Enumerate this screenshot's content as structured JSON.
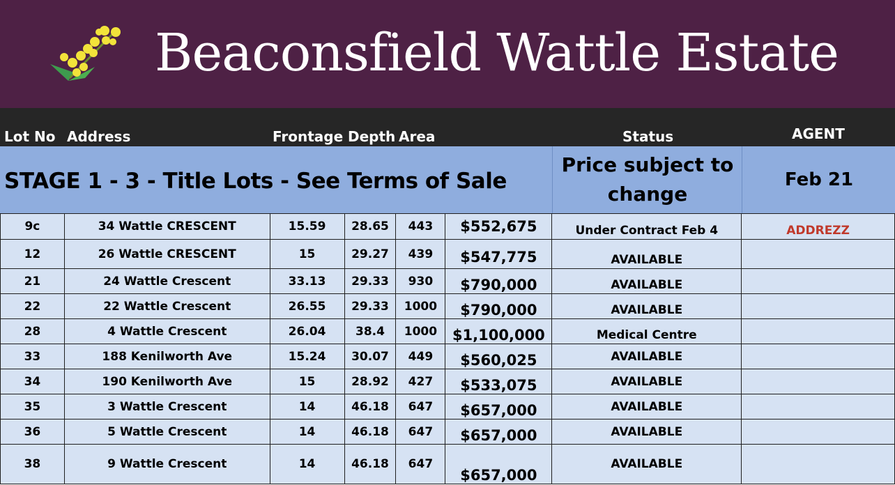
{
  "banner": {
    "title": "Beaconsfield Wattle Estate",
    "background": "#4e2145",
    "logo_icon": "wattle-flower-logo"
  },
  "header": {
    "lot_no": "Lot No",
    "address": "Address",
    "frontage": "Frontage",
    "depth": "Depth",
    "area": "Area",
    "status": "Status",
    "agent": "AGENT"
  },
  "stage": {
    "title": "STAGE  1 - 3  - Title Lots - See Terms of Sale",
    "price_note": "Price subject to change",
    "month": "Feb 21"
  },
  "lots": [
    {
      "lot": "9c",
      "address": "34 Wattle CRESCENT",
      "frontage": "15.59",
      "depth": "28.65",
      "area": "443",
      "price": "$552,675",
      "status": "Under Contract Feb 4",
      "agent": "ADDREZZ"
    },
    {
      "lot": "12",
      "address": "26 Wattle CRESCENT",
      "frontage": "15",
      "depth": "29.27",
      "area": "439",
      "price": "$547,775",
      "status": "AVAILABLE",
      "agent": ""
    },
    {
      "lot": "21",
      "address": "24 Wattle Crescent",
      "frontage": "33.13",
      "depth": "29.33",
      "area": "930",
      "price": "$790,000",
      "status": "AVAILABLE",
      "agent": ""
    },
    {
      "lot": "22",
      "address": "22 Wattle Crescent",
      "frontage": "26.55",
      "depth": "29.33",
      "area": "1000",
      "price": "$790,000",
      "status": "AVAILABLE",
      "agent": ""
    },
    {
      "lot": "28",
      "address": "4 Wattle Crescent",
      "frontage": "26.04",
      "depth": "38.4",
      "area": "1000",
      "price": "$1,100,000",
      "status": "Medical Centre",
      "agent": ""
    },
    {
      "lot": "33",
      "address": "188 Kenilworth Ave",
      "frontage": "15.24",
      "depth": "30.07",
      "area": "449",
      "price": "$560,025",
      "status": "AVAILABLE",
      "agent": ""
    },
    {
      "lot": "34",
      "address": "190 Kenilworth Ave",
      "frontage": "15",
      "depth": "28.92",
      "area": "427",
      "price": "$533,075",
      "status": "AVAILABLE",
      "agent": ""
    },
    {
      "lot": "35",
      "address": "3 Wattle Crescent",
      "frontage": "14",
      "depth": "46.18",
      "area": "647",
      "price": "$657,000",
      "status": "AVAILABLE",
      "agent": ""
    },
    {
      "lot": "36",
      "address": "5 Wattle Crescent",
      "frontage": "14",
      "depth": "46.18",
      "area": "647",
      "price": "$657,000",
      "status": "AVAILABLE",
      "agent": ""
    },
    {
      "lot": "38",
      "address": "9 Wattle Crescent",
      "frontage": "14",
      "depth": "46.18",
      "area": "647",
      "price": "$657,000",
      "status": "AVAILABLE",
      "agent": ""
    }
  ],
  "colors": {
    "header_bar": "#262626",
    "stage_band": "#8fadde",
    "row_fill": "#d6e2f3",
    "agent_text": "#c0392b"
  }
}
